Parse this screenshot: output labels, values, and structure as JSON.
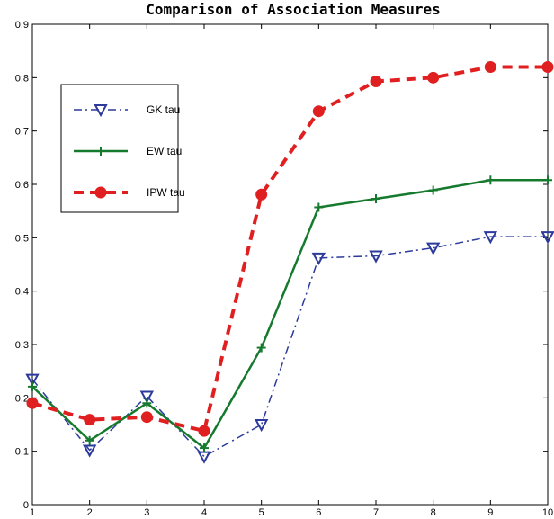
{
  "chart_data": {
    "type": "line",
    "title": "Comparison of Association Measures",
    "xlabel": "",
    "ylabel": "",
    "xlim": [
      1,
      10
    ],
    "ylim": [
      0,
      0.9
    ],
    "x": [
      1,
      2,
      3,
      4,
      5,
      6,
      7,
      8,
      9,
      10
    ],
    "xticks": [
      "1",
      "2",
      "3",
      "4",
      "5",
      "6",
      "7",
      "8",
      "9",
      "10"
    ],
    "yticks": [
      "0",
      "0.1",
      "0.2",
      "0.3",
      "0.4",
      "0.5",
      "0.6",
      "0.7",
      "0.8",
      "0.9"
    ],
    "grid": false,
    "legend_position": "upper-left",
    "series": [
      {
        "name": "GK tau",
        "values": [
          0.235,
          0.102,
          0.203,
          0.09,
          0.15,
          0.462,
          0.466,
          0.481,
          0.502,
          0.502
        ],
        "color": "#2b3a9c",
        "line_style": "dash-dot",
        "marker": "triangle-down"
      },
      {
        "name": "EW tau",
        "values": [
          0.221,
          0.12,
          0.19,
          0.106,
          0.294,
          0.557,
          0.573,
          0.589,
          0.608,
          0.608
        ],
        "color": "#157a2e",
        "line_style": "solid",
        "marker": "plus"
      },
      {
        "name": "IPW tau",
        "values": [
          0.19,
          0.159,
          0.164,
          0.138,
          0.581,
          0.737,
          0.793,
          0.8,
          0.82,
          0.82
        ],
        "color": "#e02020",
        "line_style": "dashed",
        "marker": "circle"
      }
    ]
  }
}
